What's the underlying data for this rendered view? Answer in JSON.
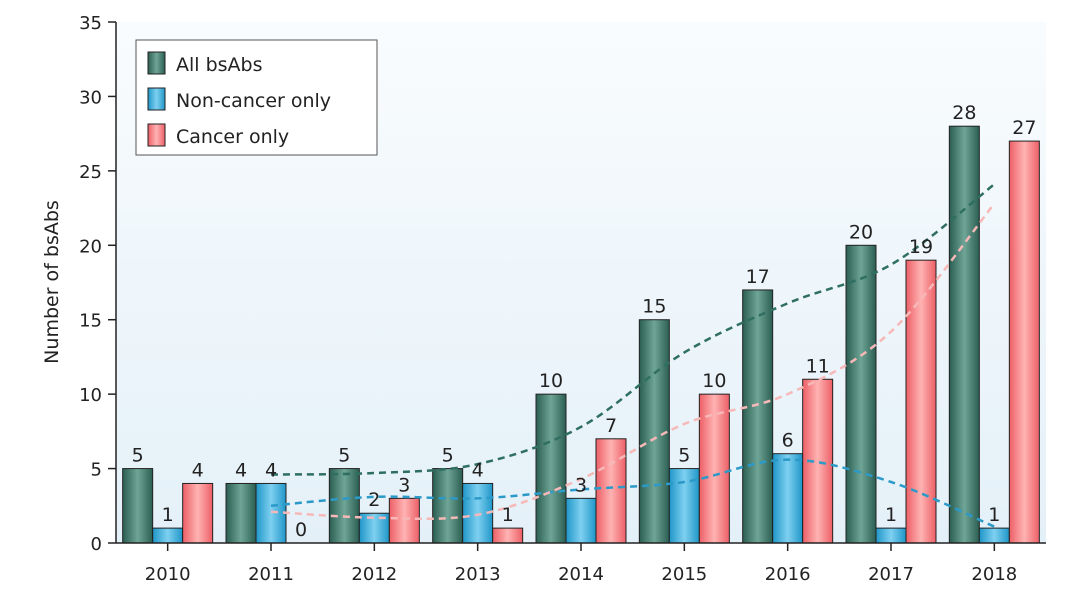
{
  "chart_data": {
    "type": "bar",
    "title": "",
    "xlabel": "",
    "ylabel": "Number of bsAbs",
    "ylim": [
      0,
      35
    ],
    "yticks": [
      0,
      5,
      10,
      15,
      20,
      25,
      30,
      35
    ],
    "grid": false,
    "legend_position": "top-left",
    "categories": [
      "2010",
      "2011",
      "2012",
      "2013",
      "2014",
      "2015",
      "2016",
      "2017",
      "2018"
    ],
    "series": [
      {
        "name": "All bsAbs",
        "color": "#3f7a6c",
        "values": [
          5,
          4,
          5,
          5,
          10,
          15,
          17,
          20,
          28
        ]
      },
      {
        "name": "Non-cancer only",
        "color": "#33aee0",
        "values": [
          1,
          4,
          2,
          4,
          3,
          5,
          6,
          1,
          1
        ]
      },
      {
        "name": "Cancer only",
        "color": "#f2777c",
        "values": [
          4,
          0,
          3,
          1,
          7,
          10,
          11,
          19,
          27
        ]
      }
    ],
    "trendlines": [
      {
        "series": "All bsAbs",
        "color": "#2f6f62",
        "style": "dashed",
        "points": [
          [
            2011,
            4.6
          ],
          [
            2012,
            4.7
          ],
          [
            2013,
            5.3
          ],
          [
            2014,
            7.8
          ],
          [
            2015,
            12.8
          ],
          [
            2016,
            16.1
          ],
          [
            2017,
            18.7
          ],
          [
            2018,
            24.1
          ]
        ]
      },
      {
        "series": "Non-cancer only",
        "color": "#2b9ac8",
        "style": "dashed",
        "points": [
          [
            2011,
            2.5
          ],
          [
            2012,
            3.1
          ],
          [
            2013,
            3.0
          ],
          [
            2014,
            3.6
          ],
          [
            2015,
            4.1
          ],
          [
            2016,
            5.6
          ],
          [
            2017,
            4.1
          ],
          [
            2018,
            1.1
          ]
        ]
      },
      {
        "series": "Cancer only",
        "color": "#f7b8b8",
        "style": "dashed",
        "points": [
          [
            2011,
            2.1
          ],
          [
            2012,
            1.7
          ],
          [
            2013,
            1.9
          ],
          [
            2014,
            4.3
          ],
          [
            2015,
            8.0
          ],
          [
            2016,
            10.0
          ],
          [
            2017,
            14.2
          ],
          [
            2018,
            22.8
          ]
        ]
      }
    ]
  }
}
